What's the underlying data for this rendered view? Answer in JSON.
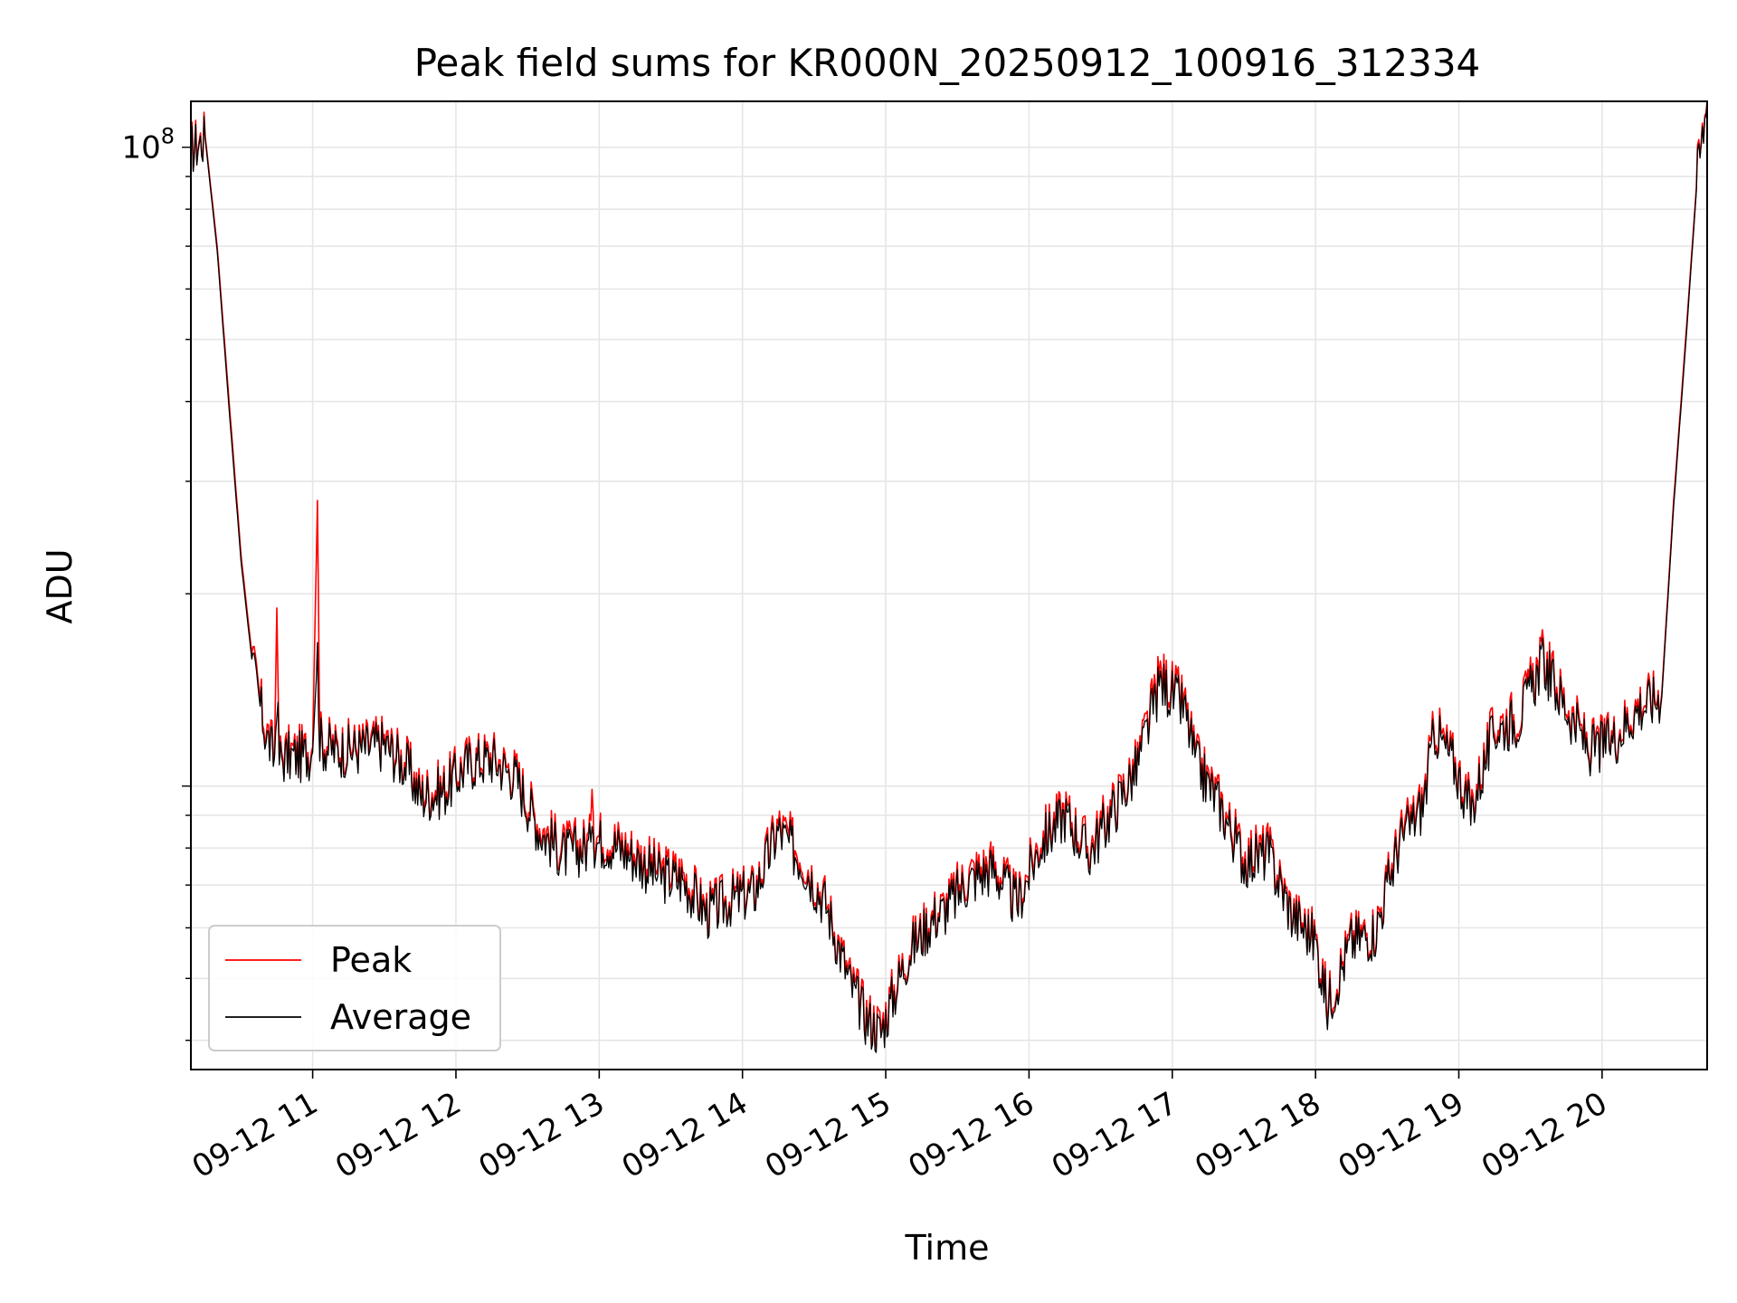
{
  "chart_data": {
    "type": "line",
    "title": "Peak field sums for KR000N_20250912_100916_312334",
    "xlabel": "Time",
    "ylabel": "ADU",
    "yscale": "log",
    "ylim": [
      3600000,
      118000000
    ],
    "xlim": [
      "2025-09-12 10:09",
      "2025-09-12 20:44"
    ],
    "x_ticks": [
      "09-12 11",
      "09-12 12",
      "09-12 13",
      "09-12 14",
      "09-12 15",
      "09-12 16",
      "09-12 17",
      "09-12 18",
      "09-12 19",
      "09-12 20"
    ],
    "y_ticks": [
      {
        "value": 100000000,
        "label": "10",
        "exponent": "8"
      }
    ],
    "grid": true,
    "legend_position": "lower-left",
    "x": [
      "10:09",
      "10:12",
      "10:15",
      "10:20",
      "10:25",
      "10:30",
      "10:35",
      "10:40",
      "10:44",
      "10:45",
      "10:46",
      "10:50",
      "10:55",
      "11:00",
      "11:02",
      "11:03",
      "11:04",
      "11:10",
      "11:20",
      "11:30",
      "11:40",
      "11:45",
      "11:55",
      "12:05",
      "12:15",
      "12:25",
      "12:35",
      "12:45",
      "12:56",
      "12:57",
      "12:58",
      "13:05",
      "13:15",
      "13:25",
      "13:35",
      "13:45",
      "13:55",
      "14:05",
      "14:15",
      "14:25",
      "14:35",
      "14:45",
      "14:52",
      "14:58",
      "15:05",
      "15:10",
      "15:20",
      "15:25",
      "15:35",
      "15:45",
      "15:55",
      "16:05",
      "16:15",
      "16:25",
      "16:35",
      "16:45",
      "16:55",
      "17:05",
      "17:10",
      "17:20",
      "17:30",
      "17:40",
      "17:50",
      "18:00",
      "18:05",
      "18:15",
      "18:25",
      "18:35",
      "18:45",
      "18:50",
      "18:58",
      "19:05",
      "19:15",
      "19:25",
      "19:35",
      "19:45",
      "19:55",
      "20:05",
      "20:15",
      "20:25",
      "20:30",
      "20:35",
      "20:40",
      "20:44"
    ],
    "series": [
      {
        "name": "Peak",
        "color": "#ff0000",
        "values": [
          100000000,
          102000000,
          104000000,
          70000000,
          40000000,
          23000000,
          15500000,
          12500000,
          11200000,
          19000000,
          11200000,
          11300000,
          11300000,
          11500000,
          28000000,
          12000000,
          11800000,
          11500000,
          11600000,
          11800000,
          10800000,
          9800000,
          10000000,
          11000000,
          11200000,
          10500000,
          8700000,
          8000000,
          8200000,
          10800000,
          8400000,
          8300000,
          7900000,
          7400000,
          7300000,
          6400000,
          6700000,
          6900000,
          8700000,
          7800000,
          6600000,
          5000000,
          4400000,
          4200000,
          5000000,
          5600000,
          6300000,
          6500000,
          7300000,
          7600000,
          6600000,
          8300000,
          9200000,
          8000000,
          9300000,
          10800000,
          15000000,
          13500000,
          11000000,
          9500000,
          7800000,
          8000000,
          6400000,
          5800000,
          4600000,
          5800000,
          6000000,
          8300000,
          9500000,
          12500000,
          11000000,
          9300000,
          12500000,
          13000000,
          16000000,
          13500000,
          11500000,
          12000000,
          13500000,
          14000000,
          28000000,
          50000000,
          92000000,
          118000000
        ]
      },
      {
        "name": "Average",
        "color": "#000000",
        "values": [
          99000000,
          101000000,
          103000000,
          69000000,
          39000000,
          22500000,
          15200000,
          12200000,
          11000000,
          14000000,
          11000000,
          11100000,
          11100000,
          11300000,
          16000000,
          11800000,
          11600000,
          11300000,
          11400000,
          11600000,
          10600000,
          9600000,
          9800000,
          10800000,
          11000000,
          10300000,
          8500000,
          7800000,
          8000000,
          9400000,
          8200000,
          8100000,
          7700000,
          7200000,
          7100000,
          6300000,
          6600000,
          6800000,
          8500000,
          7600000,
          6500000,
          4900000,
          4300000,
          4100000,
          4900000,
          5500000,
          6200000,
          6400000,
          7100000,
          7400000,
          6500000,
          8100000,
          9000000,
          7800000,
          9100000,
          10600000,
          14500000,
          13200000,
          10800000,
          9300000,
          7600000,
          7800000,
          6300000,
          5700000,
          4500000,
          5700000,
          5900000,
          8100000,
          9300000,
          12200000,
          10800000,
          9100000,
          12200000,
          12700000,
          15600000,
          13200000,
          11300000,
          11800000,
          13200000,
          13800000,
          27500000,
          49000000,
          91000000,
          117000000
        ]
      }
    ]
  }
}
